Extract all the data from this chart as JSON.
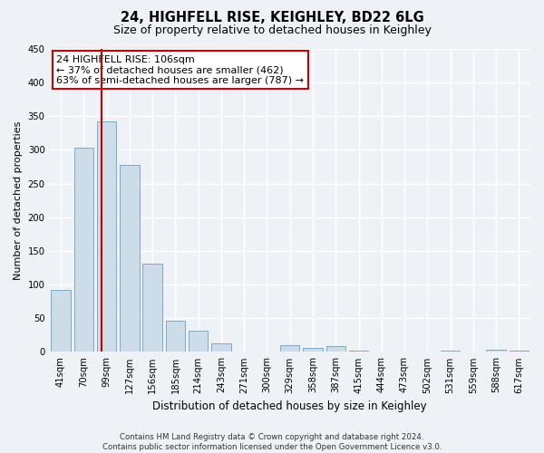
{
  "title": "24, HIGHFELL RISE, KEIGHLEY, BD22 6LG",
  "subtitle": "Size of property relative to detached houses in Keighley",
  "xlabel": "Distribution of detached houses by size in Keighley",
  "ylabel": "Number of detached properties",
  "bar_labels": [
    "41sqm",
    "70sqm",
    "99sqm",
    "127sqm",
    "156sqm",
    "185sqm",
    "214sqm",
    "243sqm",
    "271sqm",
    "300sqm",
    "329sqm",
    "358sqm",
    "387sqm",
    "415sqm",
    "444sqm",
    "473sqm",
    "502sqm",
    "531sqm",
    "559sqm",
    "588sqm",
    "617sqm"
  ],
  "bar_values": [
    92,
    303,
    342,
    278,
    131,
    46,
    31,
    13,
    0,
    0,
    10,
    6,
    9,
    2,
    0,
    0,
    0,
    2,
    0,
    3,
    2
  ],
  "bar_color": "#ccdce8",
  "bar_edge_color": "#7aaac8",
  "ylim": [
    0,
    450
  ],
  "yticks": [
    0,
    50,
    100,
    150,
    200,
    250,
    300,
    350,
    400,
    450
  ],
  "annotation_title": "24 HIGHFELL RISE: 106sqm",
  "annotation_line1": "← 37% of detached houses are smaller (462)",
  "annotation_line2": "63% of semi-detached houses are larger (787) →",
  "annotation_box_color": "#ffffff",
  "annotation_box_edge_color": "#cc0000",
  "vline_color": "#cc0000",
  "footer_line1": "Contains HM Land Registry data © Crown copyright and database right 2024.",
  "footer_line2": "Contains public sector information licensed under the Open Government Licence v3.0.",
  "background_color": "#eef2f7",
  "grid_color": "#ffffff",
  "title_fontsize": 10.5,
  "subtitle_fontsize": 9,
  "ylabel_fontsize": 8,
  "xlabel_fontsize": 8.5,
  "tick_fontsize": 7.2,
  "footer_fontsize": 6.2,
  "ann_fontsize": 8
}
